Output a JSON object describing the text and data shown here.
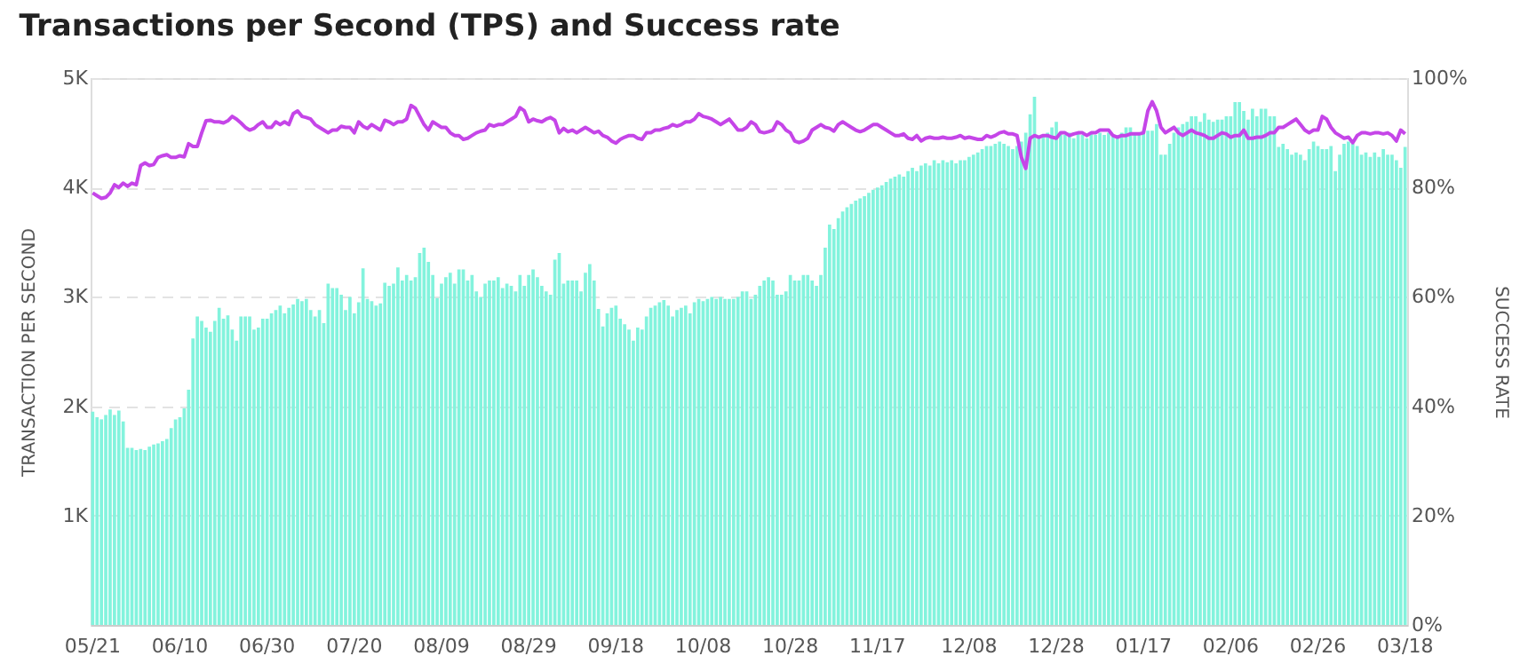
{
  "chart_data": {
    "type": "bar",
    "title": "Transactions per Second (TPS) and Success rate",
    "ylabel": "TRANSACTION PER SECOND",
    "y2label": "SUCCESS RATE",
    "categories": [
      "05/21",
      null,
      null,
      null,
      null,
      null,
      null,
      null,
      null,
      null,
      null,
      null,
      null,
      null,
      null,
      null,
      null,
      null,
      null,
      null,
      "06/10",
      null,
      null,
      null,
      null,
      null,
      null,
      null,
      null,
      null,
      null,
      null,
      null,
      null,
      null,
      null,
      null,
      null,
      null,
      null,
      "06/30",
      null,
      null,
      null,
      null,
      null,
      null,
      null,
      null,
      null,
      null,
      null,
      null,
      null,
      null,
      null,
      null,
      null,
      null,
      null,
      "07/20",
      null,
      null,
      null,
      null,
      null,
      null,
      null,
      null,
      null,
      null,
      null,
      null,
      null,
      null,
      null,
      null,
      null,
      null,
      null,
      "08/09",
      null,
      null,
      null,
      null,
      null,
      null,
      null,
      null,
      null,
      null,
      null,
      null,
      null,
      null,
      null,
      null,
      null,
      null,
      null,
      "08/29",
      null,
      null,
      null,
      null,
      null,
      null,
      null,
      null,
      null,
      null,
      null,
      null,
      null,
      null,
      null,
      null,
      null,
      null,
      null,
      "09/18",
      null,
      null,
      null,
      null,
      null,
      null,
      null,
      null,
      null,
      null,
      null,
      null,
      null,
      null,
      null,
      null,
      null,
      null,
      null,
      "10/08",
      null,
      null,
      null,
      null,
      null,
      null,
      null,
      null,
      null,
      null,
      null,
      null,
      null,
      null,
      null,
      null,
      null,
      null,
      null,
      "10/28",
      null,
      null,
      null,
      null,
      null,
      null,
      null,
      null,
      null,
      null,
      null,
      null,
      null,
      null,
      null,
      null,
      null,
      null,
      null,
      "11/17",
      null,
      null,
      null,
      null,
      null,
      null,
      null,
      null,
      null,
      null,
      null,
      null,
      null,
      null,
      null,
      null,
      null,
      null,
      null,
      null,
      "12/08",
      null,
      null,
      null,
      null,
      null,
      null,
      null,
      null,
      null,
      null,
      null,
      null,
      null,
      null,
      null,
      null,
      null,
      null,
      null,
      "12/28",
      null,
      null,
      null,
      null,
      null,
      null,
      null,
      null,
      null,
      null,
      null,
      null,
      null,
      null,
      null,
      null,
      null,
      null,
      null,
      "01/17",
      null,
      null,
      null,
      null,
      null,
      null,
      null,
      null,
      null,
      null,
      null,
      null,
      null,
      null,
      null,
      null,
      null,
      null,
      null,
      "02/06",
      null,
      null,
      null,
      null,
      null,
      null,
      null,
      null,
      null,
      null,
      null,
      null,
      null,
      null,
      null,
      null,
      null,
      null,
      null,
      "02/26",
      null,
      null,
      null,
      null,
      null,
      null,
      null,
      null,
      null,
      null,
      null,
      null,
      null,
      null,
      null,
      null,
      null,
      null,
      null,
      "03/18"
    ],
    "series": [
      {
        "color": "#83f3dd",
        "values": [
          1.95,
          1.9,
          1.88,
          1.92,
          1.97,
          1.92,
          1.96,
          1.86,
          1.62,
          1.62,
          1.6,
          1.61,
          1.6,
          1.63,
          1.65,
          1.66,
          1.68,
          1.7,
          1.8,
          1.88,
          1.9,
          1.98,
          2.15,
          2.62,
          2.82,
          2.78,
          2.72,
          2.68,
          2.78,
          2.9,
          2.8,
          2.83,
          2.7,
          2.6,
          2.82,
          2.82,
          2.82,
          2.7,
          2.72,
          2.8,
          2.8,
          2.85,
          2.88,
          2.92,
          2.85,
          2.9,
          2.93,
          2.98,
          2.96,
          2.98,
          2.88,
          2.82,
          2.88,
          2.76,
          3.12,
          3.08,
          3.08,
          3.02,
          2.88,
          3.0,
          2.85,
          2.95,
          3.26,
          2.98,
          2.96,
          2.92,
          2.94,
          3.13,
          3.1,
          3.12,
          3.27,
          3.15,
          3.2,
          3.15,
          3.18,
          3.4,
          3.45,
          3.32,
          3.2,
          2.99,
          3.12,
          3.18,
          3.22,
          3.12,
          3.25,
          3.25,
          3.15,
          3.2,
          3.05,
          3.0,
          3.12,
          3.15,
          3.15,
          3.18,
          3.08,
          3.12,
          3.1,
          3.05,
          3.2,
          3.1,
          3.2,
          3.25,
          3.18,
          3.1,
          3.05,
          3.02,
          3.34,
          3.4,
          3.12,
          3.15,
          3.15,
          3.15,
          3.05,
          3.22,
          3.3,
          3.15,
          2.89,
          2.73,
          2.85,
          2.9,
          2.92,
          2.8,
          2.75,
          2.7,
          2.6,
          2.72,
          2.7,
          2.82,
          2.9,
          2.92,
          2.95,
          2.97,
          2.92,
          2.82,
          2.88,
          2.9,
          2.92,
          2.85,
          2.95,
          2.98,
          2.96,
          2.98,
          3.0,
          2.98,
          3.0,
          2.98,
          2.98,
          2.98,
          3.0,
          3.05,
          3.05,
          2.98,
          3.02,
          3.1,
          3.15,
          3.18,
          3.15,
          3.02,
          3.02,
          3.05,
          3.2,
          3.15,
          3.15,
          3.2,
          3.2,
          3.15,
          3.1,
          3.2,
          3.45,
          3.66,
          3.62,
          3.72,
          3.78,
          3.82,
          3.85,
          3.88,
          3.9,
          3.92,
          3.95,
          3.98,
          4.0,
          4.02,
          4.05,
          4.08,
          4.1,
          4.12,
          4.1,
          4.15,
          4.18,
          4.15,
          4.2,
          4.22,
          4.2,
          4.25,
          4.22,
          4.25,
          4.23,
          4.25,
          4.22,
          4.25,
          4.25,
          4.28,
          4.3,
          4.32,
          4.35,
          4.38,
          4.38,
          4.4,
          4.42,
          4.4,
          4.38,
          4.35,
          4.38,
          4.42,
          4.5,
          4.67,
          4.83,
          4.45,
          4.48,
          4.5,
          4.55,
          4.6,
          4.5,
          4.48,
          4.5,
          4.45,
          4.5,
          4.48,
          4.45,
          4.5,
          4.48,
          4.5,
          4.48,
          4.5,
          4.48,
          4.48,
          4.5,
          4.55,
          4.55,
          4.5,
          4.5,
          4.52,
          4.52,
          4.52,
          4.58,
          4.3,
          4.3,
          4.4,
          4.5,
          4.55,
          4.58,
          4.6,
          4.65,
          4.65,
          4.6,
          4.68,
          4.62,
          4.6,
          4.62,
          4.62,
          4.65,
          4.65,
          4.78,
          4.78,
          4.7,
          4.62,
          4.72,
          4.65,
          4.72,
          4.72,
          4.65,
          4.65,
          4.37,
          4.4,
          4.35,
          4.3,
          4.32,
          4.3,
          4.25,
          4.35,
          4.42,
          4.38,
          4.35,
          4.35,
          4.38,
          4.15,
          4.3,
          4.4,
          4.42,
          4.4,
          4.38,
          4.3,
          4.32,
          4.28,
          4.32,
          4.28,
          4.35,
          4.3,
          4.3,
          4.25,
          4.18,
          4.37
        ]
      },
      {
        "type": "line",
        "axis": "y2",
        "color": "#c545e8",
        "values": [
          79,
          78.5,
          78,
          78.2,
          79,
          80.5,
          80,
          80.8,
          80.2,
          80.8,
          80.5,
          84,
          84.5,
          84,
          84.2,
          85.5,
          85.8,
          86,
          85.5,
          85.5,
          85.8,
          85.6,
          88,
          87.5,
          87.5,
          90,
          92.2,
          92.3,
          92,
          92,
          91.8,
          92.2,
          93,
          92.5,
          91.8,
          91,
          90.5,
          90.8,
          91.5,
          92,
          91,
          91,
          92,
          91.5,
          92,
          91.5,
          93.5,
          94,
          93,
          92.8,
          92.5,
          91.5,
          91,
          90.5,
          90,
          90.5,
          90.5,
          91.2,
          91,
          91,
          90,
          92,
          91.2,
          90.8,
          91.5,
          91,
          90.5,
          92.3,
          92,
          91.5,
          92,
          92,
          92.5,
          95,
          94.5,
          93,
          91.5,
          90.5,
          92,
          91.5,
          91,
          91,
          90,
          89.5,
          89.5,
          88.8,
          89,
          89.5,
          90,
          90.3,
          90.5,
          91.5,
          91.2,
          91.5,
          91.5,
          92,
          92.5,
          93,
          94.6,
          94,
          92,
          92.5,
          92.2,
          92,
          92.5,
          92.8,
          92.3,
          90,
          90.8,
          90.2,
          90.5,
          90,
          90.5,
          91,
          90.5,
          90,
          90.3,
          89.5,
          89.2,
          88.5,
          88.1,
          88.8,
          89.2,
          89.5,
          89.5,
          89,
          88.8,
          90,
          90,
          90.5,
          90.5,
          90.8,
          91,
          91.5,
          91.2,
          91.5,
          92,
          92,
          92.5,
          93.5,
          93,
          92.8,
          92.5,
          92,
          91.5,
          92,
          92.5,
          91.5,
          90.5,
          90.5,
          91,
          92,
          91.5,
          90.2,
          90,
          90.2,
          90.5,
          92,
          91.5,
          90.5,
          90,
          88.5,
          88.2,
          88.5,
          89,
          90.5,
          91,
          91.5,
          91,
          90.8,
          90.3,
          91.5,
          92,
          91.5,
          91,
          90.5,
          90.2,
          90.5,
          91,
          91.5,
          91.5,
          91,
          90.5,
          90,
          89.5,
          89.5,
          89.8,
          89,
          88.8,
          89.5,
          88.5,
          89,
          89.2,
          89,
          89,
          89.2,
          89,
          89,
          89.2,
          89.5,
          89,
          89.2,
          89,
          88.8,
          88.8,
          89.5,
          89.2,
          89.5,
          90,
          90.2,
          89.8,
          89.8,
          89.5,
          85.5,
          83.5,
          89,
          89.5,
          89.2,
          89.5,
          89.5,
          89.2,
          89,
          90,
          90,
          89.5,
          89.8,
          90,
          90,
          89.5,
          90,
          90,
          90.5,
          90.5,
          90.5,
          89.5,
          89.2,
          89.5,
          89.5,
          89.8,
          89.8,
          89.8,
          90,
          94,
          95.7,
          94,
          91,
          90,
          90.5,
          91,
          90,
          89.5,
          90,
          90.5,
          90,
          89.8,
          89.5,
          89,
          89,
          89.5,
          90,
          89.8,
          89.2,
          89.5,
          89.5,
          90.5,
          89,
          89,
          89.2,
          89.2,
          89.5,
          90,
          90,
          91,
          91,
          91.5,
          92,
          92.5,
          91.5,
          90.5,
          90,
          90.5,
          90.5,
          93,
          92.5,
          91,
          90,
          89.5,
          89,
          89.2,
          88.2,
          89.5,
          90,
          90,
          89.8,
          90,
          90,
          89.8,
          90,
          89.5,
          88.5,
          90.5,
          89.8
        ]
      }
    ],
    "ylim": [
      0,
      5
    ],
    "yticks": [
      {
        "value": 0,
        "label": null
      },
      {
        "value": 1,
        "label": "1K"
      },
      {
        "value": 2,
        "label": "2K"
      },
      {
        "value": 3,
        "label": "3K"
      },
      {
        "value": 4,
        "label": "4K"
      },
      {
        "value": 5,
        "label": "5K"
      }
    ],
    "y2lim": [
      0,
      100
    ],
    "y2ticks": [
      {
        "value": 0,
        "label": "0%"
      },
      {
        "value": 20,
        "label": "20%"
      },
      {
        "value": 40,
        "label": "40%"
      },
      {
        "value": 60,
        "label": "60%"
      },
      {
        "value": 80,
        "label": "80%"
      },
      {
        "value": 100,
        "label": "100%"
      }
    ],
    "grid": "y",
    "marker": "none",
    "line_style": "solid"
  }
}
